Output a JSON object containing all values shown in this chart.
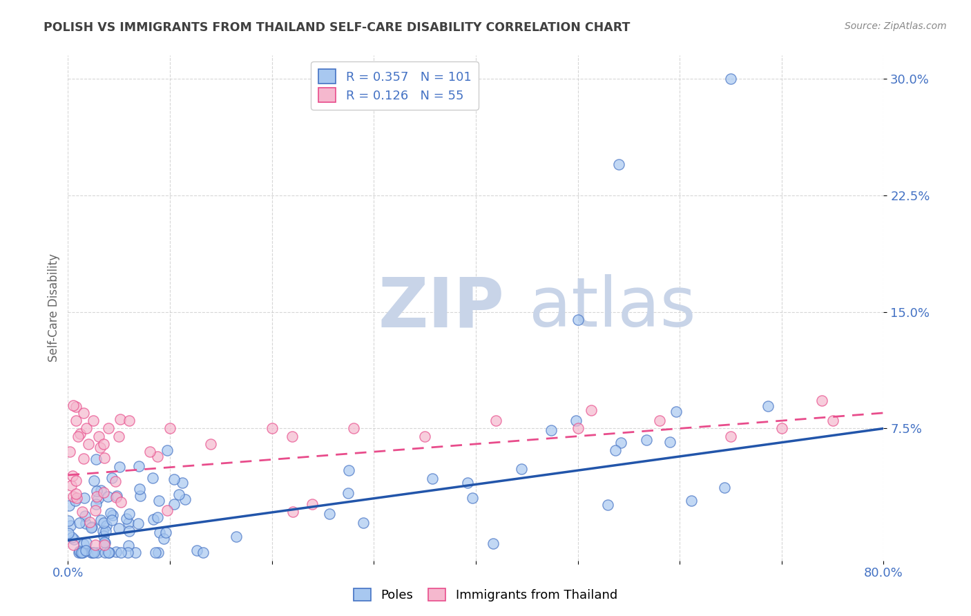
{
  "title": "POLISH VS IMMIGRANTS FROM THAILAND SELF-CARE DISABILITY CORRELATION CHART",
  "source": "Source: ZipAtlas.com",
  "ylabel": "Self-Care Disability",
  "xlim": [
    0.0,
    0.8
  ],
  "ylim": [
    -0.01,
    0.315
  ],
  "legend_blue_R": "0.357",
  "legend_blue_N": "101",
  "legend_pink_R": "0.126",
  "legend_pink_N": "55",
  "poles_label": "Poles",
  "thai_label": "Immigrants from Thailand",
  "blue_scatter_color": "#A8C8F0",
  "blue_scatter_edge": "#4472C4",
  "pink_scatter_color": "#F5B8CE",
  "pink_scatter_edge": "#E84C8B",
  "blue_line_color": "#2255AA",
  "pink_line_color": "#E84C8B",
  "background_color": "#FFFFFF",
  "watermark_zip_color": "#C8D4E8",
  "watermark_atlas_color": "#C8D4E8",
  "title_color": "#404040",
  "axis_label_color": "#666666",
  "tick_label_color": "#4472C4",
  "grid_color": "#CCCCCC",
  "source_color": "#888888"
}
